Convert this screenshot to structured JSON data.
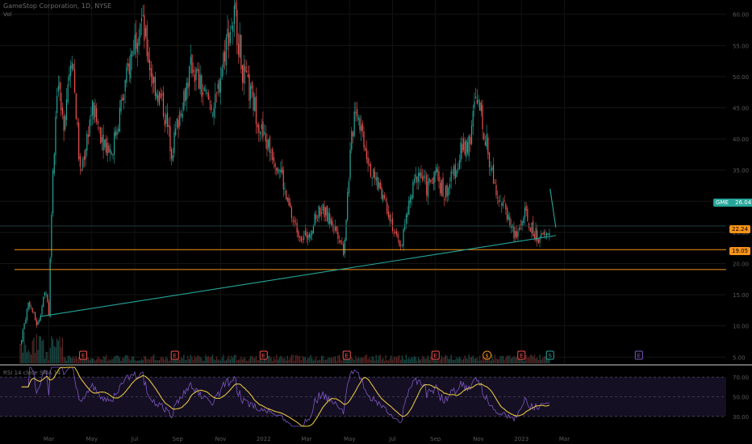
{
  "header": {
    "symbol_title": "GameStop Corporation, 1D, NYSE",
    "volume_label": "Vol"
  },
  "rsi_header": "RSI 14 close SMA 14",
  "colors": {
    "background": "#000000",
    "up": "#26a69a",
    "down": "#ef5350",
    "support": "#f7931a",
    "trendline": "#26a69a",
    "rsi_line": "#7e57c2",
    "rsi_ma": "#f5d142",
    "earnings_badge": "#ef5350",
    "earnings_badge_future": "#7e57c2",
    "dividend_badge": "#f7931a",
    "split_badge": "#26a69a"
  },
  "chart_data": [
    {
      "type": "candlestick",
      "title": "GameStop Corporation, 1D, NYSE",
      "price_axis_ticks": [
        60,
        55,
        50,
        45,
        40,
        35,
        30,
        25,
        20,
        15,
        10,
        5
      ],
      "ylim": [
        4,
        61
      ],
      "x_axis_labels": [
        "Mar",
        "May",
        "Jul",
        "Sep",
        "Nov",
        "2022",
        "Mar",
        "May",
        "Jul",
        "Sep",
        "Nov",
        "2023",
        "Mar"
      ],
      "series_close_path": [
        {
          "m": 0,
          "p": 7
        },
        {
          "m": 0.3,
          "p": 14
        },
        {
          "m": 0.6,
          "p": 10
        },
        {
          "m": 0.9,
          "p": 16
        },
        {
          "m": 1.0,
          "p": 12
        },
        {
          "m": 1.1,
          "p": 30
        },
        {
          "m": 1.3,
          "p": 50
        },
        {
          "m": 1.5,
          "p": 42
        },
        {
          "m": 1.8,
          "p": 55
        },
        {
          "m": 2.1,
          "p": 34
        },
        {
          "m": 2.5,
          "p": 45
        },
        {
          "m": 2.9,
          "p": 40
        },
        {
          "m": 3.2,
          "p": 38
        },
        {
          "m": 3.6,
          "p": 47
        },
        {
          "m": 3.9,
          "p": 54
        },
        {
          "m": 4.2,
          "p": 60
        },
        {
          "m": 4.6,
          "p": 50
        },
        {
          "m": 5.0,
          "p": 45
        },
        {
          "m": 5.3,
          "p": 38
        },
        {
          "m": 5.6,
          "p": 45
        },
        {
          "m": 6.0,
          "p": 52
        },
        {
          "m": 6.4,
          "p": 47
        },
        {
          "m": 6.8,
          "p": 45
        },
        {
          "m": 7.2,
          "p": 56
        },
        {
          "m": 7.5,
          "p": 60
        },
        {
          "m": 7.8,
          "p": 50
        },
        {
          "m": 8.2,
          "p": 45
        },
        {
          "m": 8.5,
          "p": 40
        },
        {
          "m": 8.8,
          "p": 38
        },
        {
          "m": 9.1,
          "p": 35
        },
        {
          "m": 9.3,
          "p": 30
        },
        {
          "m": 9.6,
          "p": 26
        },
        {
          "m": 9.9,
          "p": 24
        },
        {
          "m": 10.2,
          "p": 26
        },
        {
          "m": 10.5,
          "p": 29
        },
        {
          "m": 10.8,
          "p": 27
        },
        {
          "m": 11.1,
          "p": 25
        },
        {
          "m": 11.3,
          "p": 22
        },
        {
          "m": 11.5,
          "p": 36
        },
        {
          "m": 11.7,
          "p": 46
        },
        {
          "m": 12.0,
          "p": 40
        },
        {
          "m": 12.3,
          "p": 34
        },
        {
          "m": 12.6,
          "p": 32
        },
        {
          "m": 12.9,
          "p": 28
        },
        {
          "m": 13.1,
          "p": 24
        },
        {
          "m": 13.3,
          "p": 23
        },
        {
          "m": 13.6,
          "p": 30
        },
        {
          "m": 13.9,
          "p": 35
        },
        {
          "m": 14.2,
          "p": 32
        },
        {
          "m": 14.5,
          "p": 35
        },
        {
          "m": 14.8,
          "p": 31
        },
        {
          "m": 15.1,
          "p": 34
        },
        {
          "m": 15.4,
          "p": 38
        },
        {
          "m": 15.7,
          "p": 40
        },
        {
          "m": 15.9,
          "p": 46
        },
        {
          "m": 16.1,
          "p": 44
        },
        {
          "m": 16.4,
          "p": 36
        },
        {
          "m": 16.7,
          "p": 31
        },
        {
          "m": 17.0,
          "p": 28
        },
        {
          "m": 17.3,
          "p": 24
        },
        {
          "m": 17.6,
          "p": 28
        },
        {
          "m": 17.9,
          "p": 25
        },
        {
          "m": 18.2,
          "p": 24
        },
        {
          "m": 18.5,
          "p": 25
        }
      ],
      "levels": [
        {
          "label": "22.24",
          "price": 22.24
        },
        {
          "label": "19.05",
          "price": 19.05
        }
      ],
      "current_price": {
        "symbol": "GME",
        "value": "26.04"
      },
      "event_badges": [
        "E",
        "E",
        "E",
        "E",
        "E",
        "E",
        "$",
        "S",
        "E"
      ],
      "last_month_index": 18.5
    },
    {
      "type": "line",
      "title": "RSI 14 close SMA 14",
      "band": [
        30,
        70
      ],
      "mid": 50,
      "rsi_axis_ticks": [
        70,
        50,
        30
      ],
      "ylim": [
        20,
        80
      ]
    }
  ]
}
